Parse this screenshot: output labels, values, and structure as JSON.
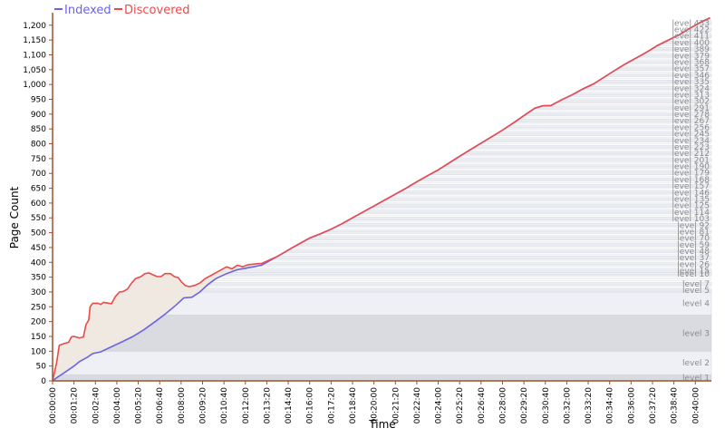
{
  "chart_data": {
    "type": "area",
    "title": "",
    "xlabel": "Time",
    "ylabel": "Page Count",
    "ylim": [
      0,
      1230
    ],
    "yticks": [
      0,
      50,
      100,
      150,
      200,
      250,
      300,
      350,
      400,
      450,
      500,
      550,
      600,
      650,
      700,
      750,
      800,
      850,
      900,
      950,
      1000,
      1050,
      1100,
      1150,
      1200
    ],
    "ytick_labels": [
      "0",
      "50",
      "100",
      "150",
      "200",
      "250",
      "300",
      "350",
      "400",
      "450",
      "500",
      "550",
      "600",
      "650",
      "700",
      "750",
      "800",
      "850",
      "900",
      "950",
      "1,000",
      "1,050",
      "1,100",
      "1,150",
      "1,200"
    ],
    "x_unit": "seconds",
    "xlim": [
      0,
      2460
    ],
    "xticks": [
      0,
      80,
      160,
      240,
      320,
      400,
      480,
      560,
      640,
      720,
      800,
      880,
      960,
      1040,
      1120,
      1200,
      1280,
      1360,
      1440,
      1520,
      1600,
      1680,
      1760,
      1840,
      1920,
      2000,
      2080,
      2160,
      2240,
      2320,
      2400
    ],
    "xtick_labels": [
      "00:00:00",
      "00:01:20",
      "00:02:40",
      "00:04:00",
      "00:05:20",
      "00:06:40",
      "00:08:00",
      "00:09:20",
      "00:10:40",
      "00:12:00",
      "00:13:20",
      "00:14:40",
      "00:16:00",
      "00:17:20",
      "00:18:40",
      "00:20:00",
      "00:21:20",
      "00:22:40",
      "00:24:00",
      "00:25:20",
      "00:26:40",
      "00:28:00",
      "00:29:20",
      "00:30:40",
      "00:32:00",
      "00:33:20",
      "00:34:40",
      "00:36:00",
      "00:37:20",
      "00:38:40",
      "00:40:00"
    ],
    "legend_position": "top-left",
    "series": [
      {
        "name": "Indexed",
        "color": "#6b63e6",
        "points": [
          [
            0,
            0
          ],
          [
            15,
            10
          ],
          [
            40,
            25
          ],
          [
            80,
            50
          ],
          [
            100,
            65
          ],
          [
            130,
            80
          ],
          [
            150,
            92
          ],
          [
            180,
            98
          ],
          [
            220,
            115
          ],
          [
            260,
            132
          ],
          [
            300,
            150
          ],
          [
            340,
            172
          ],
          [
            380,
            198
          ],
          [
            420,
            225
          ],
          [
            460,
            255
          ],
          [
            490,
            280
          ],
          [
            520,
            282
          ],
          [
            550,
            300
          ],
          [
            580,
            325
          ],
          [
            610,
            345
          ],
          [
            650,
            362
          ],
          [
            690,
            375
          ],
          [
            720,
            380
          ],
          [
            750,
            385
          ],
          [
            780,
            390
          ],
          [
            840,
            420
          ],
          [
            900,
            452
          ],
          [
            960,
            482
          ],
          [
            1000,
            496
          ],
          [
            1040,
            512
          ],
          [
            1080,
            530
          ],
          [
            1120,
            550
          ],
          [
            1160,
            570
          ],
          [
            1200,
            590
          ],
          [
            1240,
            610
          ],
          [
            1280,
            630
          ],
          [
            1320,
            650
          ],
          [
            1360,
            672
          ],
          [
            1400,
            692
          ],
          [
            1440,
            712
          ],
          [
            1480,
            735
          ],
          [
            1520,
            758
          ],
          [
            1560,
            780
          ],
          [
            1600,
            802
          ],
          [
            1640,
            824
          ],
          [
            1680,
            846
          ],
          [
            1720,
            870
          ],
          [
            1760,
            895
          ],
          [
            1800,
            920
          ],
          [
            1830,
            928
          ],
          [
            1860,
            929
          ],
          [
            1900,
            948
          ],
          [
            1940,
            965
          ],
          [
            1980,
            985
          ],
          [
            2020,
            1002
          ],
          [
            2060,
            1025
          ],
          [
            2100,
            1048
          ],
          [
            2140,
            1070
          ],
          [
            2180,
            1090
          ],
          [
            2220,
            1110
          ],
          [
            2260,
            1132
          ],
          [
            2300,
            1150
          ],
          [
            2340,
            1168
          ],
          [
            2380,
            1190
          ],
          [
            2420,
            1210
          ],
          [
            2455,
            1225
          ]
        ]
      },
      {
        "name": "Discovered",
        "color": "#ea4a4a",
        "points": [
          [
            0,
            0
          ],
          [
            15,
            60
          ],
          [
            25,
            120
          ],
          [
            40,
            125
          ],
          [
            60,
            130
          ],
          [
            70,
            148
          ],
          [
            80,
            150
          ],
          [
            100,
            145
          ],
          [
            115,
            148
          ],
          [
            125,
            190
          ],
          [
            135,
            205
          ],
          [
            140,
            250
          ],
          [
            150,
            262
          ],
          [
            170,
            262
          ],
          [
            180,
            258
          ],
          [
            190,
            265
          ],
          [
            210,
            262
          ],
          [
            220,
            260
          ],
          [
            235,
            285
          ],
          [
            250,
            300
          ],
          [
            265,
            302
          ],
          [
            280,
            310
          ],
          [
            295,
            330
          ],
          [
            310,
            345
          ],
          [
            330,
            352
          ],
          [
            345,
            362
          ],
          [
            360,
            364
          ],
          [
            375,
            358
          ],
          [
            390,
            352
          ],
          [
            405,
            352
          ],
          [
            420,
            362
          ],
          [
            440,
            362
          ],
          [
            455,
            352
          ],
          [
            470,
            348
          ],
          [
            480,
            335
          ],
          [
            495,
            322
          ],
          [
            510,
            318
          ],
          [
            530,
            322
          ],
          [
            550,
            330
          ],
          [
            570,
            345
          ],
          [
            590,
            355
          ],
          [
            610,
            365
          ],
          [
            630,
            375
          ],
          [
            650,
            385
          ],
          [
            670,
            378
          ],
          [
            690,
            390
          ],
          [
            710,
            385
          ],
          [
            730,
            392
          ],
          [
            760,
            395
          ],
          [
            780,
            396
          ],
          [
            840,
            420
          ],
          [
            900,
            452
          ],
          [
            960,
            482
          ],
          [
            1000,
            496
          ],
          [
            1040,
            512
          ],
          [
            1080,
            530
          ],
          [
            1120,
            550
          ],
          [
            1160,
            570
          ],
          [
            1200,
            590
          ],
          [
            1240,
            610
          ],
          [
            1280,
            630
          ],
          [
            1320,
            650
          ],
          [
            1360,
            672
          ],
          [
            1400,
            692
          ],
          [
            1440,
            712
          ],
          [
            1480,
            735
          ],
          [
            1520,
            758
          ],
          [
            1560,
            780
          ],
          [
            1600,
            802
          ],
          [
            1640,
            824
          ],
          [
            1680,
            846
          ],
          [
            1720,
            870
          ],
          [
            1760,
            895
          ],
          [
            1800,
            920
          ],
          [
            1830,
            928
          ],
          [
            1860,
            929
          ],
          [
            1900,
            948
          ],
          [
            1940,
            965
          ],
          [
            1980,
            985
          ],
          [
            2020,
            1002
          ],
          [
            2060,
            1025
          ],
          [
            2100,
            1048
          ],
          [
            2140,
            1070
          ],
          [
            2180,
            1090
          ],
          [
            2220,
            1110
          ],
          [
            2260,
            1132
          ],
          [
            2300,
            1150
          ],
          [
            2340,
            1168
          ],
          [
            2380,
            1190
          ],
          [
            2420,
            1210
          ],
          [
            2455,
            1225
          ]
        ]
      }
    ],
    "level_bands": [
      {
        "label": "level 1",
        "from": 0,
        "to": 21
      },
      {
        "label": "level 2",
        "from": 21,
        "to": 100
      },
      {
        "label": "level 3",
        "from": 100,
        "to": 222
      },
      {
        "label": "level 4",
        "from": 222,
        "to": 300
      },
      {
        "label": "level 5",
        "from": 300,
        "to": 311
      },
      {
        "label": "level 7",
        "from": 322,
        "to": 333
      },
      {
        "label": "level 10",
        "from": 355,
        "to": 366
      },
      {
        "label": "level 15",
        "from": 366,
        "to": 377
      },
      {
        "label": "level 26",
        "from": 388,
        "to": 399
      },
      {
        "label": "level 37",
        "from": 410,
        "to": 421
      },
      {
        "label": "level 48",
        "from": 432,
        "to": 443
      },
      {
        "label": "level 59",
        "from": 454,
        "to": 465
      },
      {
        "label": "level 70",
        "from": 476,
        "to": 487
      },
      {
        "label": "level 81",
        "from": 498,
        "to": 509
      },
      {
        "label": "level 92",
        "from": 520,
        "to": 531
      },
      {
        "label": "level 103",
        "from": 542,
        "to": 553
      },
      {
        "label": "level 114",
        "from": 564,
        "to": 575
      },
      {
        "label": "level 125",
        "from": 586,
        "to": 597
      },
      {
        "label": "level 135",
        "from": 608,
        "to": 619
      },
      {
        "label": "level 146",
        "from": 630,
        "to": 641
      },
      {
        "label": "level 157",
        "from": 652,
        "to": 663
      },
      {
        "label": "level 168",
        "from": 674,
        "to": 685
      },
      {
        "label": "level 179",
        "from": 696,
        "to": 707
      },
      {
        "label": "level 190",
        "from": 718,
        "to": 729
      },
      {
        "label": "level 201",
        "from": 740,
        "to": 751
      },
      {
        "label": "level 212",
        "from": 762,
        "to": 773
      },
      {
        "label": "level 223",
        "from": 784,
        "to": 795
      },
      {
        "label": "level 234",
        "from": 806,
        "to": 817
      },
      {
        "label": "level 245",
        "from": 828,
        "to": 839
      },
      {
        "label": "level 256",
        "from": 850,
        "to": 861
      },
      {
        "label": "level 267",
        "from": 872,
        "to": 883
      },
      {
        "label": "level 278",
        "from": 894,
        "to": 905
      },
      {
        "label": "level 291",
        "from": 916,
        "to": 927
      },
      {
        "label": "level 302",
        "from": 938,
        "to": 949
      },
      {
        "label": "level 313",
        "from": 960,
        "to": 971
      },
      {
        "label": "level 324",
        "from": 982,
        "to": 993
      },
      {
        "label": "level 335",
        "from": 1004,
        "to": 1015
      },
      {
        "label": "level 346",
        "from": 1026,
        "to": 1037
      },
      {
        "label": "level 357",
        "from": 1048,
        "to": 1059
      },
      {
        "label": "level 368",
        "from": 1070,
        "to": 1081
      },
      {
        "label": "level 379",
        "from": 1092,
        "to": 1103
      },
      {
        "label": "level 389",
        "from": 1114,
        "to": 1125
      },
      {
        "label": "level 400",
        "from": 1136,
        "to": 1147
      },
      {
        "label": "level 411",
        "from": 1158,
        "to": 1169
      },
      {
        "label": "level 422",
        "from": 1180,
        "to": 1191
      },
      {
        "label": "level 433",
        "from": 1202,
        "to": 1213
      }
    ],
    "colors": {
      "band_dark": "#d9dbe0",
      "band_light": "#eef0f6",
      "band_line": "#c9ccd3",
      "gap_fill": "#e9e2d8",
      "axis": "#a0522d",
      "level_label": "#8a8a8a"
    }
  }
}
